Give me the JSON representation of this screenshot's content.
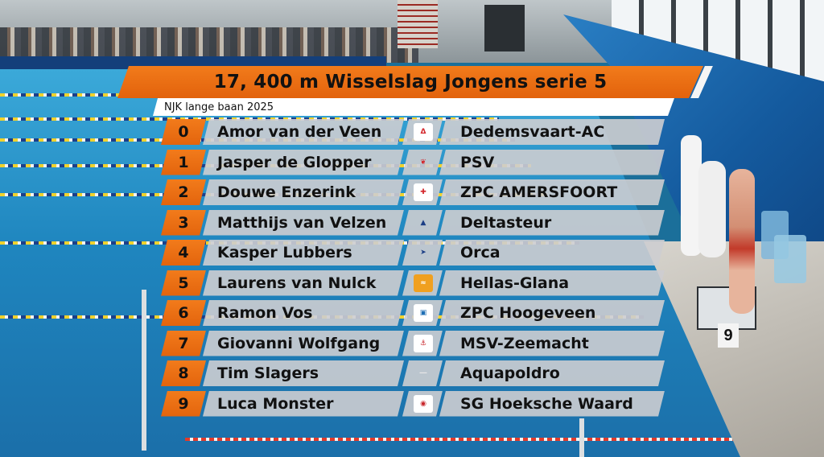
{
  "event": {
    "title": "17, 400 m Wisselslag Jongens serie 5",
    "meet": "NJK lange baan 2025",
    "accent_color": "#e9700f"
  },
  "start_list": [
    {
      "lane": "0",
      "name": "Amor van der Veen",
      "club": "Dedemsvaart-AC",
      "logo": "dedemsvaart-logo"
    },
    {
      "lane": "1",
      "name": "Jasper de Glopper",
      "club": "PSV",
      "logo": "psv-logo"
    },
    {
      "lane": "2",
      "name": "Douwe Enzerink",
      "club": "ZPC AMERSFOORT",
      "logo": "amersfoort-cross-logo"
    },
    {
      "lane": "3",
      "name": "Matthijs van Velzen",
      "club": "Deltasteur",
      "logo": "deltasteur-logo"
    },
    {
      "lane": "4",
      "name": "Kasper Lubbers",
      "club": "Orca",
      "logo": "orca-logo"
    },
    {
      "lane": "5",
      "name": "Laurens van Nulck",
      "club": "Hellas-Glana",
      "logo": "hellas-glana-logo"
    },
    {
      "lane": "6",
      "name": "Ramon Vos",
      "club": "ZPC Hoogeveen",
      "logo": "hoogeveen-logo"
    },
    {
      "lane": "7",
      "name": "Giovanni Wolfgang",
      "club": "MSV-Zeemacht",
      "logo": "zeemacht-logo"
    },
    {
      "lane": "8",
      "name": "Tim Slagers",
      "club": "Aquapoldro",
      "logo": "aquapoldro-logo"
    },
    {
      "lane": "9",
      "name": "Luca Monster",
      "club": "SG Hoeksche Waard",
      "logo": "hoeksche-waard-logo"
    }
  ],
  "scene": {
    "starting_block_number": "9"
  }
}
